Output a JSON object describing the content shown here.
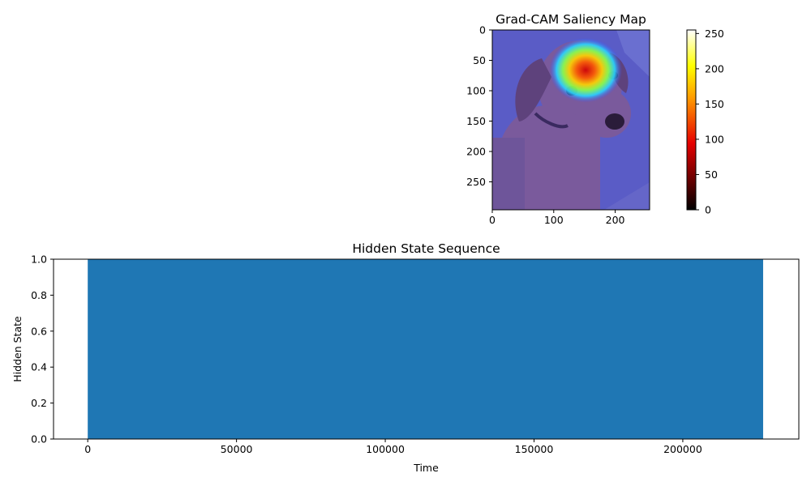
{
  "chart_data": [
    {
      "type": "heatmap",
      "title": "Grad-CAM Saliency Map",
      "xlim": [
        0,
        256
      ],
      "ylim": [
        296,
        0
      ],
      "xticks": [
        0,
        100,
        200
      ],
      "yticks": [
        0,
        50,
        100,
        150,
        200,
        250
      ],
      "hotspot_center": [
        152,
        66
      ],
      "colorbar": {
        "colormap": "hot",
        "range": [
          0,
          255
        ],
        "ticks": [
          0,
          50,
          100,
          150,
          200,
          250
        ]
      }
    },
    {
      "type": "bar",
      "title": "Hidden State Sequence",
      "xlabel": "Time",
      "ylabel": "Hidden State",
      "x_range": [
        0,
        227000
      ],
      "values": [
        1.0
      ],
      "xlim": [
        -11500,
        239000
      ],
      "ylim": [
        0,
        1
      ],
      "xticks": [
        0,
        50000,
        100000,
        150000,
        200000
      ],
      "yticks": [
        0.0,
        0.2,
        0.4,
        0.6,
        0.8,
        1.0
      ],
      "colors": {
        "fill": "#1f77b4"
      }
    }
  ]
}
